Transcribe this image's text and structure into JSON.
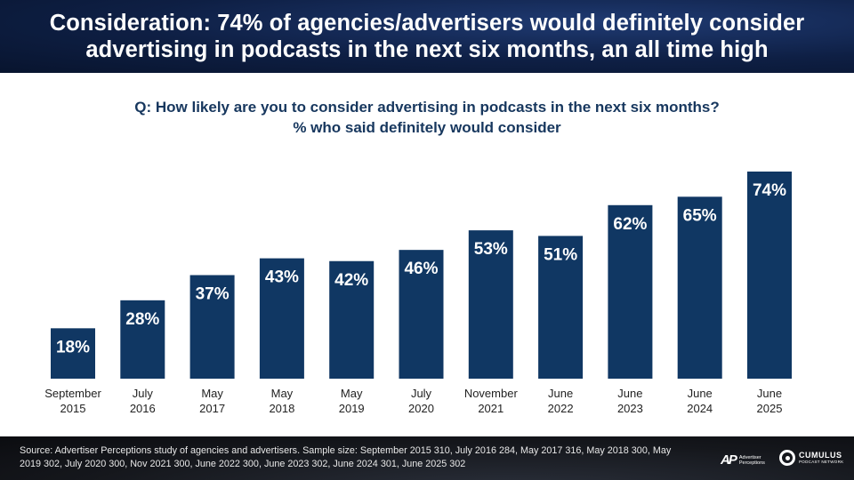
{
  "header": {
    "title": "Consideration: 74% of agencies/advertisers would definitely consider\nadvertising in podcasts in the next six months, an all time high"
  },
  "question": {
    "line1": "Q: How likely are you to consider advertising in podcasts in the next six months?",
    "line2": "% who said definitely would consider"
  },
  "chart_data": {
    "type": "bar",
    "categories": [
      [
        "September",
        "2015"
      ],
      [
        "July",
        "2016"
      ],
      [
        "May",
        "2017"
      ],
      [
        "May",
        "2018"
      ],
      [
        "May",
        "2019"
      ],
      [
        "July",
        "2020"
      ],
      [
        "November",
        "2021"
      ],
      [
        "June",
        "2022"
      ],
      [
        "June",
        "2023"
      ],
      [
        "June",
        "2024"
      ],
      [
        "June",
        "2025"
      ]
    ],
    "values": [
      18,
      28,
      37,
      43,
      42,
      46,
      53,
      51,
      62,
      65,
      74
    ],
    "labels": [
      "18%",
      "28%",
      "37%",
      "43%",
      "42%",
      "46%",
      "53%",
      "51%",
      "62%",
      "65%",
      "74%"
    ],
    "title": "",
    "xlabel": "",
    "ylabel": "",
    "ylim": [
      0,
      74
    ],
    "bar_color": "#103763",
    "label_color": "#ffffff",
    "grid": false,
    "legend": "none"
  },
  "footer": {
    "source": "Source: Advertiser Perceptions study of agencies and advertisers. Sample size: September 2015 310, July 2016 284, May 2017 316, May 2018 300, May 2019 302, July 2020 300, Nov 2021 300, June 2022 300, June 2023 302, June 2024 301, June 2025 302",
    "logo_ap_mark": "AP",
    "logo_ap_text": "Advertiser Perceptions",
    "logo_cumulus_name": "CUMULUS",
    "logo_cumulus_sub": "PODCAST NETWORK"
  }
}
